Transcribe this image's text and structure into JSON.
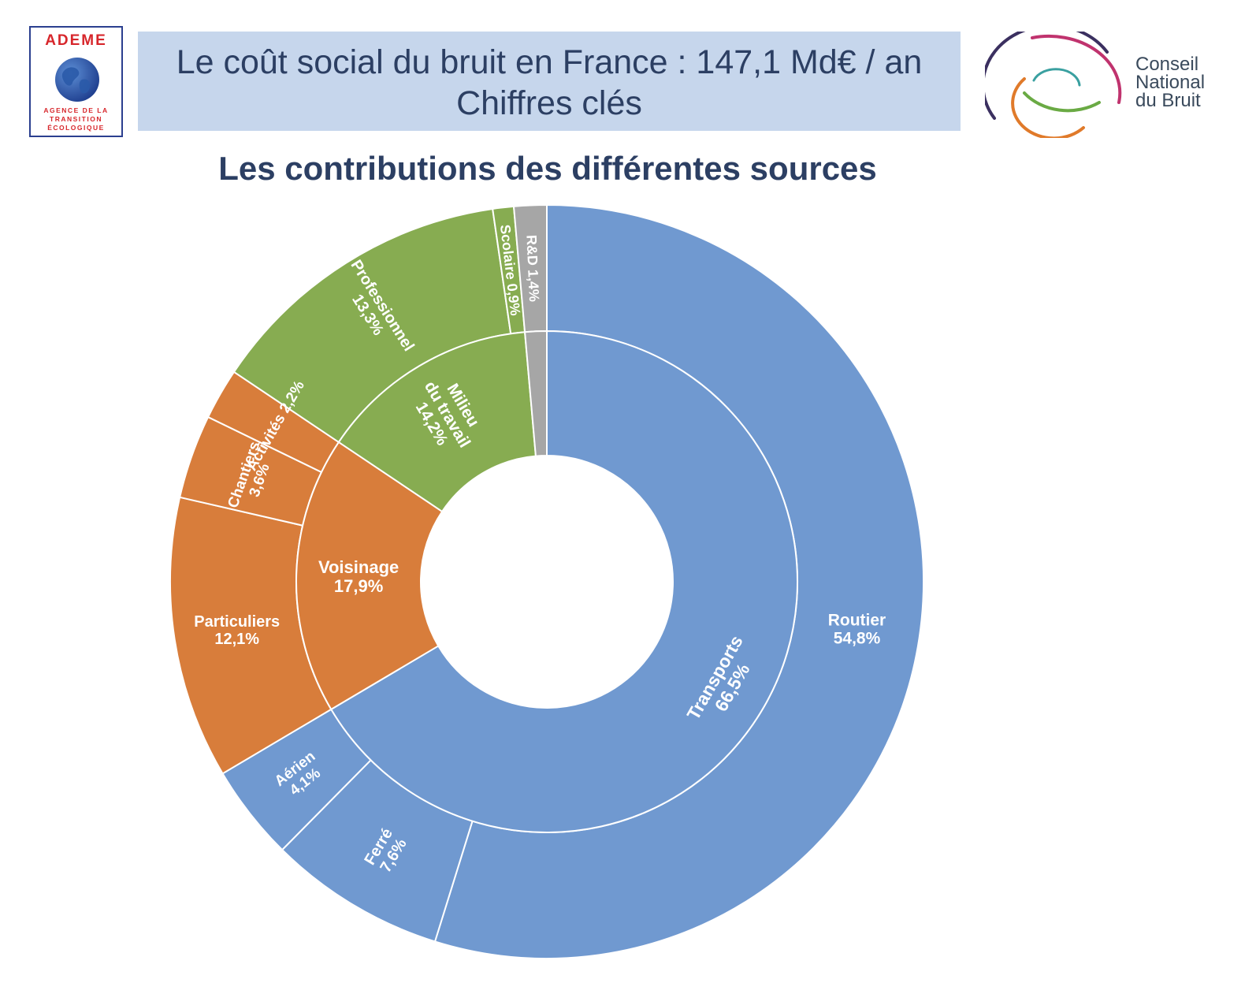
{
  "header": {
    "ademe_logo": {
      "name": "ADEME",
      "subtitle_lines": [
        "AGENCE DE LA",
        "TRANSITION",
        "ÉCOLOGIQUE"
      ],
      "icon": "globe-icon"
    },
    "title_line1": "Le coût social du bruit en France : 147,1 Md€ / an",
    "title_line2": "Chiffres clés",
    "cnb_logo": {
      "lines": [
        "Conseil",
        "National",
        "du Bruit"
      ],
      "icon": "concentric-arcs-icon"
    }
  },
  "colors": {
    "transports": "#7099d0",
    "voisinage": "#d87d3b",
    "travail": "#87ac51",
    "rd": "#a6a6a6",
    "title_bg": "#c6d6ec",
    "title_text": "#2c3f63",
    "ademe_red": "#d7262b"
  },
  "chart_data": {
    "type": "sunburst",
    "title": "Les contributions des différentes sources",
    "inner": [
      {
        "label": "Transports",
        "value_label": "66,5%",
        "value": 66.5,
        "group": "transports"
      },
      {
        "label": "Voisinage",
        "value_label": "17,9%",
        "value": 17.9,
        "group": "voisinage"
      },
      {
        "label": "Milieu du travail",
        "value_label": "14,2%",
        "value": 14.2,
        "group": "travail"
      },
      {
        "label": "",
        "value_label": "",
        "value": 1.4,
        "group": "rd"
      }
    ],
    "outer": [
      {
        "label": "Routier",
        "value_label": "54,8%",
        "value": 54.8,
        "group": "transports"
      },
      {
        "label": "Ferré",
        "value_label": "7,6%",
        "value": 7.6,
        "group": "transports"
      },
      {
        "label": "Aérien",
        "value_label": "4,1%",
        "value": 4.1,
        "group": "transports"
      },
      {
        "label": "Particuliers",
        "value_label": "12,1%",
        "value": 12.1,
        "group": "voisinage"
      },
      {
        "label": "Chantiers",
        "value_label": "3,6%",
        "value": 3.6,
        "group": "voisinage"
      },
      {
        "label": "Activités",
        "value_label": "2,2%",
        "value": 2.2,
        "group": "voisinage"
      },
      {
        "label": "Professionnel",
        "value_label": "13,3%",
        "value": 13.3,
        "group": "travail"
      },
      {
        "label": "Scolaire",
        "value_label": "0,9%",
        "value": 0.9,
        "group": "travail"
      },
      {
        "label": "R&D",
        "value_label": "1,4%",
        "value": 1.4,
        "group": "rd"
      }
    ]
  }
}
